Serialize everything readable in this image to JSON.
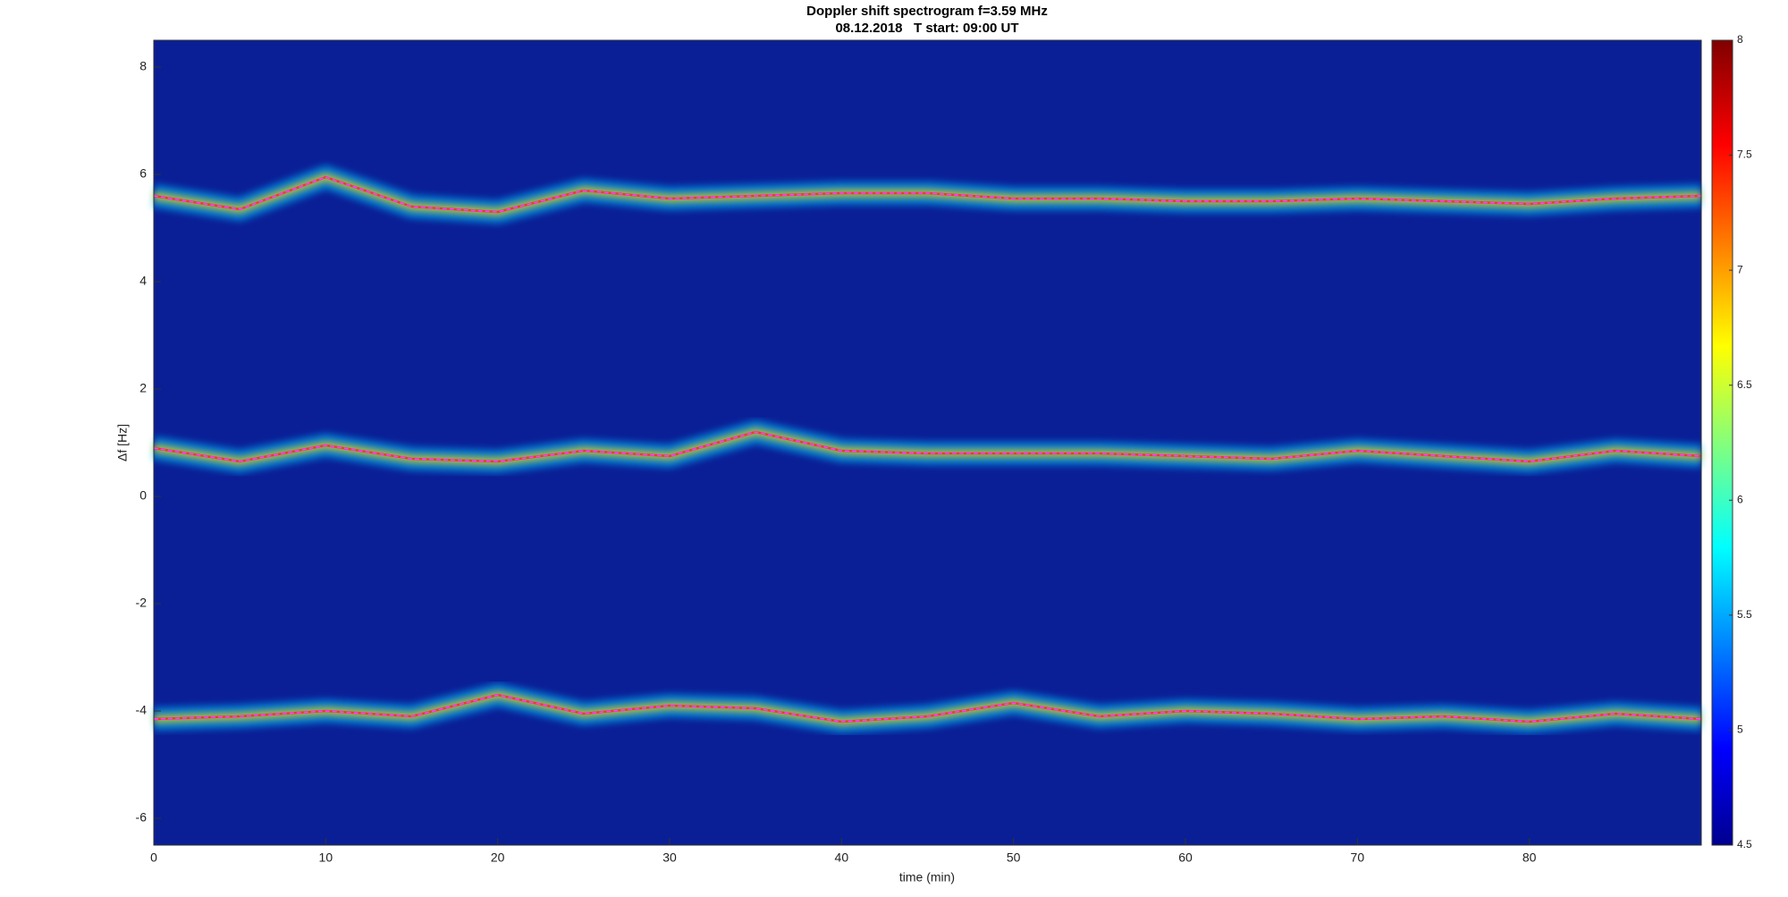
{
  "chart_data": {
    "type": "spectrogram",
    "title": "Doppler shift spectrogram f=3.59 MHz",
    "subtitle": "08.12.2018   T start: 09:00 UT",
    "x_label": "time (min)",
    "y_label": "Δf [Hz]",
    "x": [
      0,
      5,
      10,
      15,
      20,
      25,
      30,
      35,
      40,
      45,
      50,
      55,
      60,
      65,
      70,
      75,
      80,
      85,
      90
    ],
    "series": [
      {
        "color": "#ff40ff",
        "values": [
          5.6,
          5.35,
          5.95,
          5.4,
          5.3,
          5.7,
          5.55,
          5.6,
          5.65,
          5.65,
          5.55,
          5.55,
          5.5,
          5.5,
          5.55,
          5.5,
          5.45,
          5.55,
          5.6
        ]
      },
      {
        "color": "#ff40ff",
        "values": [
          0.9,
          0.65,
          0.95,
          0.7,
          0.65,
          0.85,
          0.75,
          1.2,
          0.85,
          0.8,
          0.8,
          0.8,
          0.75,
          0.7,
          0.85,
          0.75,
          0.65,
          0.85,
          0.75
        ]
      },
      {
        "color": "#ff40ff",
        "values": [
          -4.15,
          -4.1,
          -4.0,
          -4.1,
          -3.7,
          -4.05,
          -3.9,
          -3.95,
          -4.2,
          -4.1,
          -3.85,
          -4.1,
          -4.0,
          -4.05,
          -4.15,
          -4.1,
          -4.2,
          -4.05,
          -4.15
        ]
      }
    ],
    "xlim": [
      0,
      90
    ],
    "xticks": [
      0,
      10,
      20,
      30,
      40,
      50,
      60,
      70,
      80
    ],
    "ylim": [
      -6.5,
      8.5
    ],
    "yticks": [
      -6,
      -4,
      -2,
      0,
      2,
      4,
      6,
      8
    ],
    "colormap": "jet",
    "plot_background": "#0a1f96",
    "clim": [
      4.5,
      8
    ],
    "cticks": [
      4.5,
      5,
      5.5,
      6,
      6.5,
      7,
      7.5,
      8
    ]
  }
}
